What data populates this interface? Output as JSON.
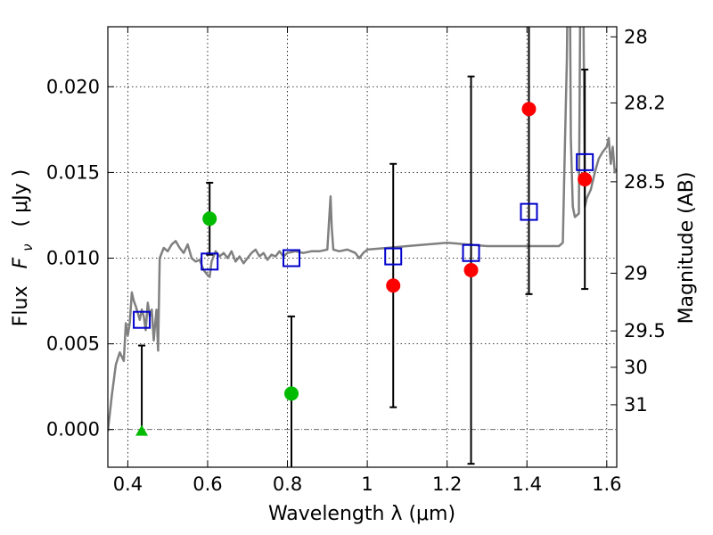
{
  "chart_data": {
    "type": "scatter",
    "title": "",
    "xlabel": "Wavelength  λ (μm)",
    "ylabel": "Flux  F_ν  ( μJy )",
    "ylabel_text": "Flux",
    "ylabel_symbol": "F",
    "ylabel_subscript": "ν",
    "ylabel_unit": "( μJy )",
    "y2label": "Magnitude (AB)",
    "xlim": [
      0.35,
      1.625
    ],
    "ylim": [
      -0.0022,
      0.0235
    ],
    "grid": true,
    "x_ticks": [
      {
        "value": 0.4,
        "label": "0.4"
      },
      {
        "value": 0.6,
        "label": "0.6"
      },
      {
        "value": 0.8,
        "label": "0.8"
      },
      {
        "value": 1.0,
        "label": "1"
      },
      {
        "value": 1.2,
        "label": "1.2"
      },
      {
        "value": 1.4,
        "label": "1.4"
      },
      {
        "value": 1.6,
        "label": "1.6"
      }
    ],
    "y_ticks": [
      {
        "value": 0.0,
        "label": "0.000"
      },
      {
        "value": 0.005,
        "label": "0.005"
      },
      {
        "value": 0.01,
        "label": "0.010"
      },
      {
        "value": 0.015,
        "label": "0.015"
      },
      {
        "value": 0.02,
        "label": "0.020"
      }
    ],
    "y2_ticks": [
      {
        "mag": 28.0,
        "label": "28"
      },
      {
        "mag": 28.2,
        "label": "28.2"
      },
      {
        "mag": 28.5,
        "label": "28.5"
      },
      {
        "mag": 29.0,
        "label": "29"
      },
      {
        "mag": 29.5,
        "label": "29.5"
      },
      {
        "mag": 30.0,
        "label": "30"
      },
      {
        "mag": 31.0,
        "label": "31"
      }
    ],
    "colors": {
      "model": "#808080",
      "model_points": "#0000cc",
      "observed": "#ff0000",
      "observed_alt": "#00bb00",
      "errorbar": "#000000"
    },
    "model_spectrum": {
      "x": [
        0.35,
        0.36,
        0.37,
        0.38,
        0.39,
        0.395,
        0.4,
        0.405,
        0.41,
        0.415,
        0.42,
        0.425,
        0.43,
        0.435,
        0.44,
        0.445,
        0.45,
        0.455,
        0.46,
        0.465,
        0.468,
        0.472,
        0.476,
        0.48,
        0.49,
        0.5,
        0.51,
        0.52,
        0.53,
        0.54,
        0.55,
        0.56,
        0.57,
        0.58,
        0.59,
        0.6,
        0.605,
        0.61,
        0.62,
        0.63,
        0.64,
        0.65,
        0.66,
        0.67,
        0.68,
        0.69,
        0.7,
        0.71,
        0.72,
        0.73,
        0.74,
        0.75,
        0.76,
        0.77,
        0.78,
        0.79,
        0.8,
        0.82,
        0.84,
        0.86,
        0.88,
        0.9,
        0.905,
        0.908,
        0.911,
        0.915,
        0.93,
        0.95,
        0.97,
        0.98,
        0.99,
        1.0,
        1.05,
        1.1,
        1.15,
        1.2,
        1.25,
        1.3,
        1.35,
        1.4,
        1.45,
        1.48,
        1.49,
        1.495,
        1.5,
        1.503,
        1.507,
        1.51,
        1.515,
        1.52,
        1.53,
        1.535,
        1.54,
        1.545,
        1.55,
        1.56,
        1.57,
        1.58,
        1.59,
        1.6,
        1.605,
        1.61,
        1.615,
        1.62,
        1.625
      ],
      "y": [
        -0.0001,
        0.002,
        0.0038,
        0.0045,
        0.004,
        0.0062,
        0.0055,
        0.0062,
        0.008,
        0.0075,
        0.0072,
        0.0068,
        0.0064,
        0.007,
        0.0066,
        0.0058,
        0.0074,
        0.0066,
        0.007,
        0.0052,
        0.006,
        0.007,
        0.0046,
        0.01,
        0.0106,
        0.0104,
        0.0108,
        0.011,
        0.0106,
        0.0103,
        0.0108,
        0.01,
        0.0098,
        0.0099,
        0.0093,
        0.009,
        0.0089,
        0.0098,
        0.0104,
        0.0101,
        0.0103,
        0.01,
        0.0104,
        0.0098,
        0.0101,
        0.0097,
        0.01,
        0.0103,
        0.0105,
        0.0101,
        0.0103,
        0.0099,
        0.0102,
        0.0101,
        0.0104,
        0.0101,
        0.0103,
        0.0104,
        0.0103,
        0.0104,
        0.0104,
        0.0105,
        0.0125,
        0.0136,
        0.0118,
        0.0105,
        0.0104,
        0.0105,
        0.0103,
        0.01,
        0.0103,
        0.0105,
        0.0106,
        0.0107,
        0.0108,
        0.0109,
        0.0108,
        0.0107,
        0.0107,
        0.0107,
        0.0107,
        0.0107,
        0.0109,
        0.0165,
        0.0215,
        0.028,
        0.028,
        0.017,
        0.013,
        0.0124,
        0.0126,
        0.03,
        0.03,
        0.013,
        0.0135,
        0.014,
        0.015,
        0.0158,
        0.0162,
        0.0165,
        0.017,
        0.0155,
        0.0165,
        0.015,
        0.0152
      ]
    },
    "model_points": {
      "marker": "square-open",
      "x": [
        0.435,
        0.605,
        0.81,
        1.065,
        1.26,
        1.405,
        1.545
      ],
      "y": [
        0.0064,
        0.0098,
        0.01,
        0.0101,
        0.0103,
        0.0127,
        0.0156
      ]
    },
    "observed_points": [
      {
        "x": 0.435,
        "y": -0.0001,
        "err_low": 0.0001,
        "err_high": 0.005,
        "color": "#00bb00",
        "marker": "triangle"
      },
      {
        "x": 0.605,
        "y": 0.0123,
        "err_low": 0.0021,
        "err_high": 0.0021,
        "color": "#00bb00",
        "marker": "circle"
      },
      {
        "x": 0.81,
        "y": 0.0021,
        "err_low": 0.0045,
        "err_high": 0.0045,
        "color": "#00bb00",
        "marker": "circle"
      },
      {
        "x": 1.065,
        "y": 0.0084,
        "err_low": 0.0071,
        "err_high": 0.0071,
        "color": "#ff0000",
        "marker": "circle"
      },
      {
        "x": 1.26,
        "y": 0.0093,
        "err_low": 0.0113,
        "err_high": 0.0113,
        "color": "#ff0000",
        "marker": "circle"
      },
      {
        "x": 1.405,
        "y": 0.0187,
        "err_low": 0.0108,
        "err_high": 0.0108,
        "color": "#ff0000",
        "marker": "circle"
      },
      {
        "x": 1.545,
        "y": 0.0146,
        "err_low": 0.0064,
        "err_high": 0.0064,
        "color": "#ff0000",
        "marker": "circle"
      }
    ]
  }
}
